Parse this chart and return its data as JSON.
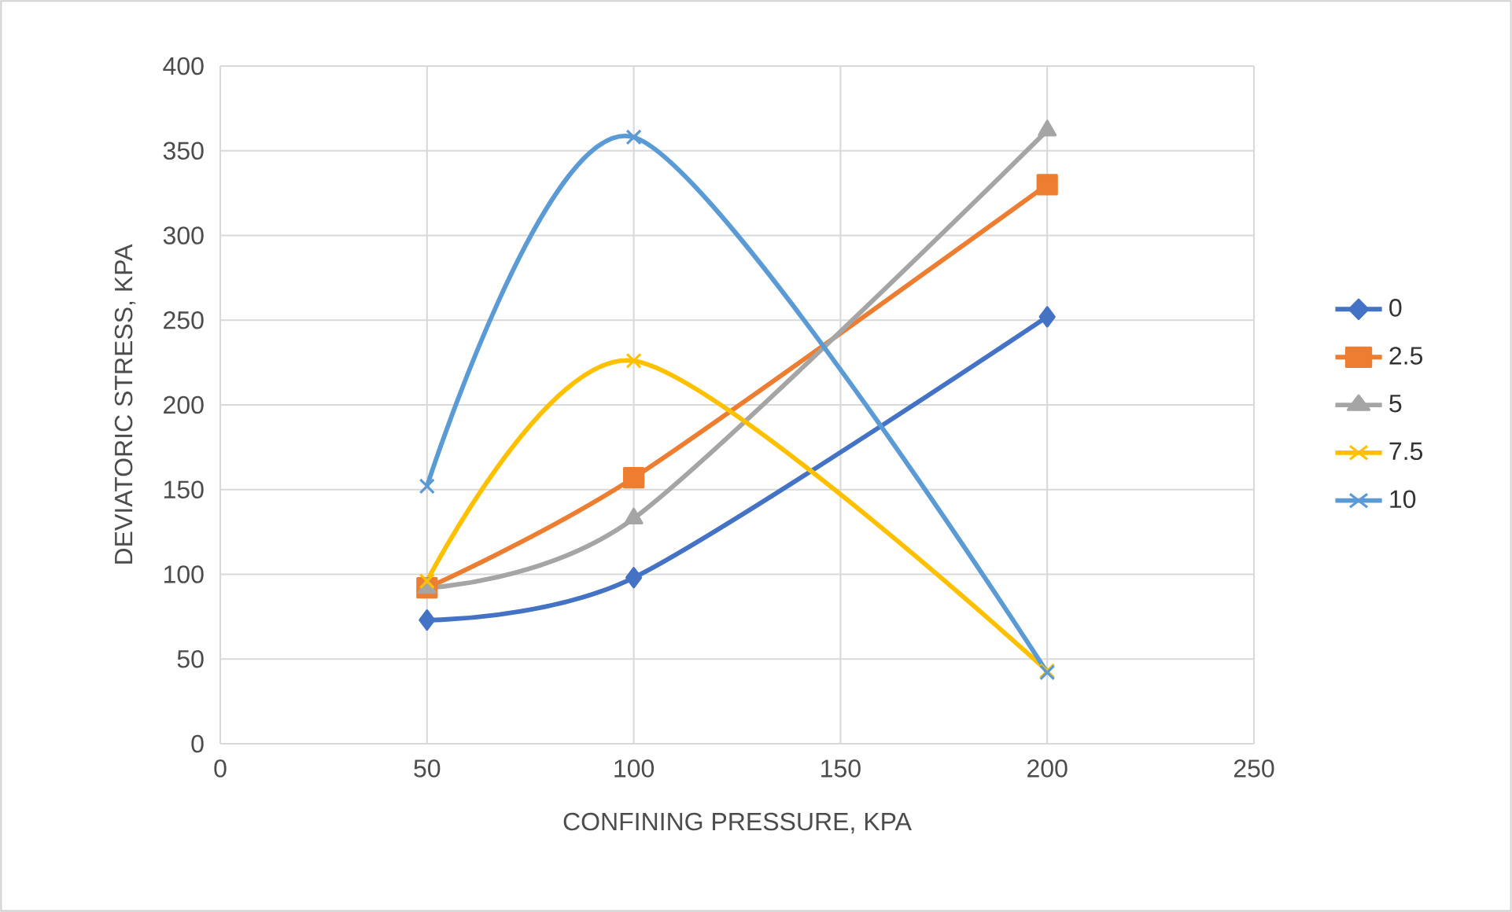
{
  "chart_data": {
    "type": "line",
    "xlabel": "CONFINING PRESSURE, KPA",
    "ylabel": "DEVIATORIC STRESS, KPA",
    "x": [
      50,
      100,
      200
    ],
    "series": [
      {
        "name": "0",
        "color": "#4472c4",
        "marker": "diamond",
        "values": [
          73,
          98,
          252
        ]
      },
      {
        "name": "2.5",
        "color": "#ed7d31",
        "marker": "square",
        "values": [
          92,
          157,
          330
        ]
      },
      {
        "name": "5",
        "color": "#a5a5a5",
        "marker": "triangle",
        "values": [
          92,
          133,
          362
        ]
      },
      {
        "name": "7.5",
        "color": "#ffc000",
        "marker": "cross",
        "values": [
          96,
          226,
          43
        ]
      },
      {
        "name": "10",
        "color": "#5b9bd5",
        "marker": "cross",
        "values": [
          152,
          358,
          42
        ]
      }
    ],
    "xlim": [
      0,
      250
    ],
    "xticks": [
      0,
      50,
      100,
      150,
      200,
      250
    ],
    "ylim": [
      0,
      400
    ],
    "yticks": [
      0,
      50,
      100,
      150,
      200,
      250,
      300,
      350,
      400
    ],
    "grid": true,
    "legend": "right",
    "line_style": "solid"
  }
}
